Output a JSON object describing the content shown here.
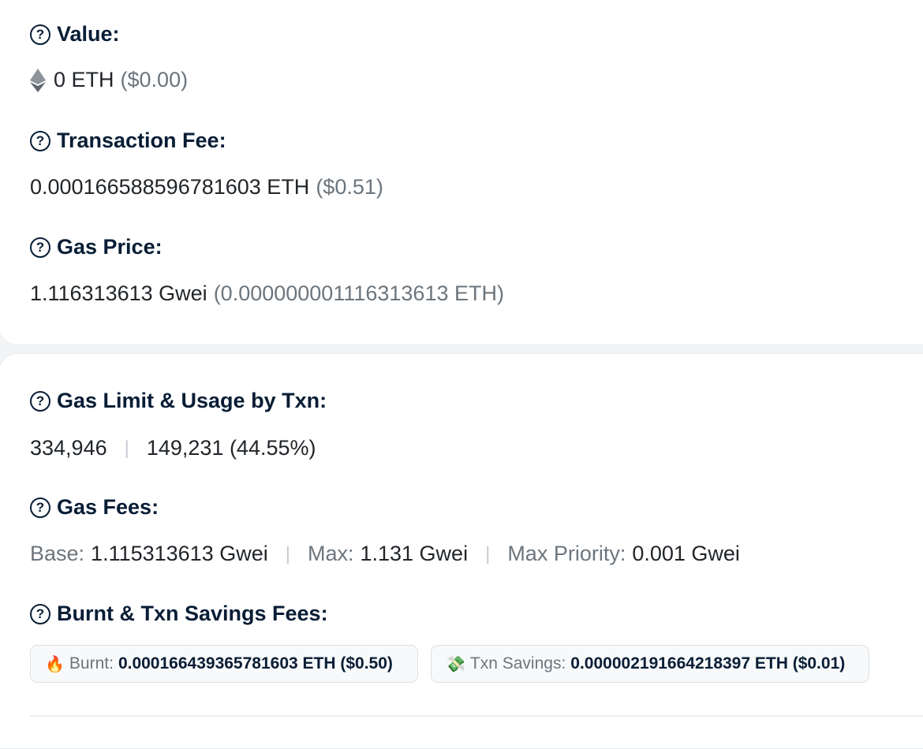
{
  "value": {
    "label": "Value:",
    "amount": "0 ETH",
    "usd": "($0.00)"
  },
  "transaction_fee": {
    "label": "Transaction Fee:",
    "amount": "0.000166588596781603 ETH",
    "usd": "($0.51)"
  },
  "gas_price": {
    "label": "Gas Price:",
    "amount": "1.116313613 Gwei",
    "eth": "(0.000000001116313613 ETH)"
  },
  "gas_limit": {
    "label": "Gas Limit & Usage by Txn:",
    "limit": "334,946",
    "separator": "|",
    "usage": "149,231 (44.55%)"
  },
  "gas_fees": {
    "label": "Gas Fees:",
    "base_key": "Base:",
    "base_value": "1.115313613 Gwei",
    "max_key": "Max:",
    "max_value": "1.131 Gwei",
    "priority_key": "Max Priority:",
    "priority_value": "0.001 Gwei",
    "separator": "|"
  },
  "burnt_savings": {
    "label": "Burnt & Txn Savings Fees:",
    "burnt_emoji": "🔥",
    "burnt_key": "Burnt:",
    "burnt_value": "0.000166439365781603 ETH ($0.50)",
    "savings_emoji": "💸",
    "savings_key": "Txn Savings:",
    "savings_value": "0.000002191664218397 ETH ($0.01)"
  },
  "help_icon_glyph": "?",
  "icons": {
    "help": "question-circle-icon",
    "eth": "ethereum-icon"
  },
  "colors": {
    "heading": "#081d35",
    "muted": "#6c757d",
    "text": "#212529",
    "separator": "#c6ccd2"
  }
}
